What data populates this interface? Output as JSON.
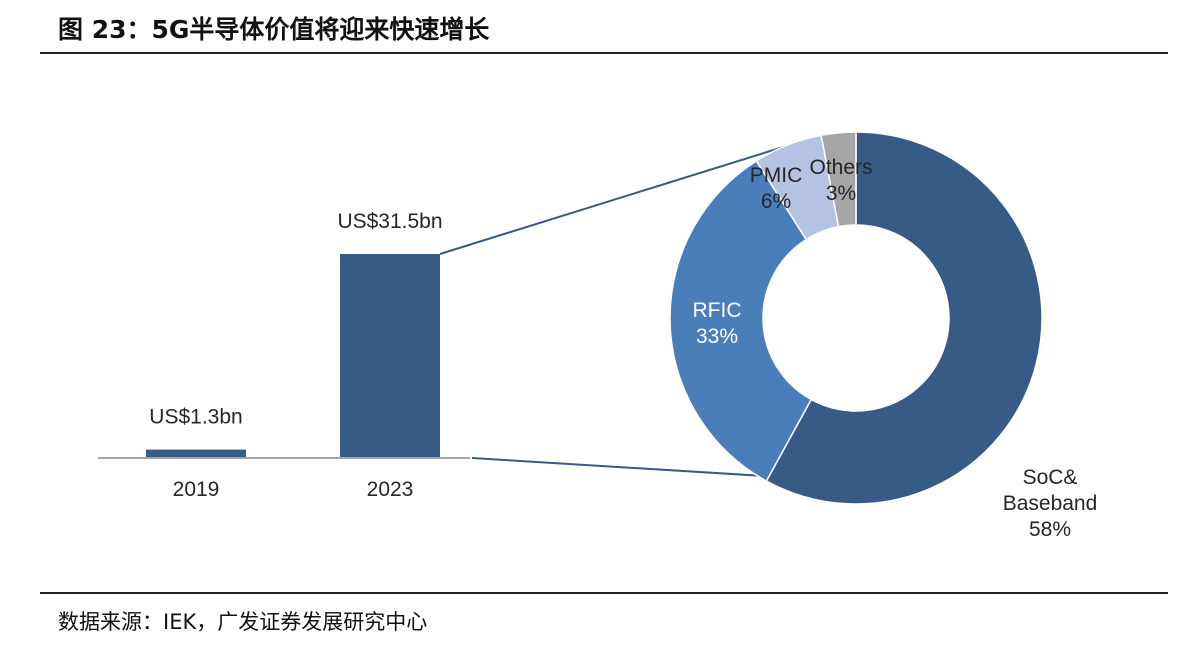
{
  "figure": {
    "title": "图 23：5G半导体价值将迎来快速增长",
    "source": "数据来源：IEK，广发证券发展研究中心"
  },
  "chart_data": [
    {
      "type": "bar",
      "categories": [
        "2019",
        "2023"
      ],
      "values": [
        1.3,
        31.5
      ],
      "value_labels": [
        "US$1.3bn",
        "US$31.5bn"
      ],
      "unit": "US$bn",
      "color": "#365B86",
      "axis_color": "#A6A6A6"
    },
    {
      "type": "pie",
      "variant": "donut",
      "slices": [
        {
          "label": "SoC& Baseband",
          "value": 58,
          "value_label": "58%",
          "color": "#365B86",
          "text_color": "#262626"
        },
        {
          "label": "RFIC",
          "value": 33,
          "value_label": "33%",
          "color": "#4A7EBB",
          "text_color": "#ffffff"
        },
        {
          "label": "PMIC",
          "value": 6,
          "value_label": "6%",
          "color": "#B4C3E3",
          "text_color": "#262626"
        },
        {
          "label": "Others",
          "value": 3,
          "value_label": "3%",
          "color": "#A6A6A6",
          "text_color": "#262626"
        }
      ],
      "connector_color": "#365B86"
    }
  ]
}
